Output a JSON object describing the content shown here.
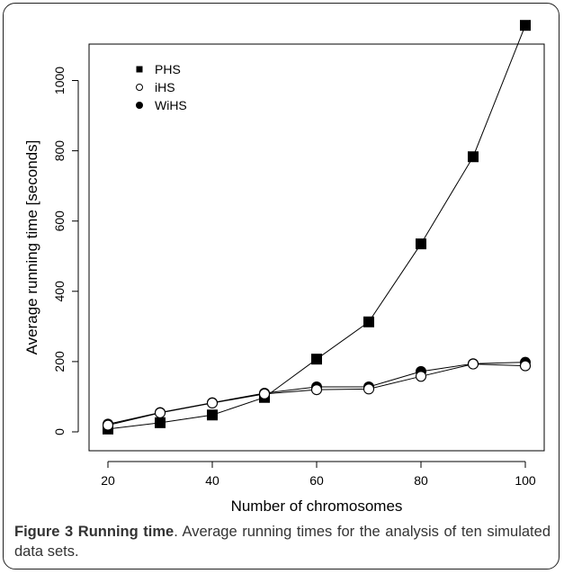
{
  "chart_data": {
    "type": "line",
    "xlabel": "Number of chromosomes",
    "ylabel": "Average running time [seconds]",
    "x": [
      20,
      30,
      40,
      50,
      60,
      70,
      80,
      90,
      100
    ],
    "xlim": [
      20,
      100
    ],
    "ylim": [
      0,
      1150
    ],
    "xticks": [
      20,
      40,
      60,
      80,
      100
    ],
    "yticks": [
      0,
      200,
      400,
      600,
      800,
      1000
    ],
    "grid": false,
    "legend_position": "top-left",
    "series": [
      {
        "name": "PHS",
        "marker": "filled-square",
        "values": [
          8,
          26,
          48,
          98,
          207,
          313,
          535,
          783,
          1157
        ]
      },
      {
        "name": "iHS",
        "marker": "open-circle",
        "values": [
          19,
          54,
          82,
          108,
          120,
          122,
          158,
          193,
          188
        ]
      },
      {
        "name": "WiHS",
        "marker": "filled-circle",
        "values": [
          22,
          55,
          83,
          110,
          128,
          128,
          172,
          194,
          198
        ]
      }
    ]
  },
  "caption": {
    "label": "Figure 3 Running time",
    "text": ". Average running times for the analysis of ten simulated data sets."
  }
}
